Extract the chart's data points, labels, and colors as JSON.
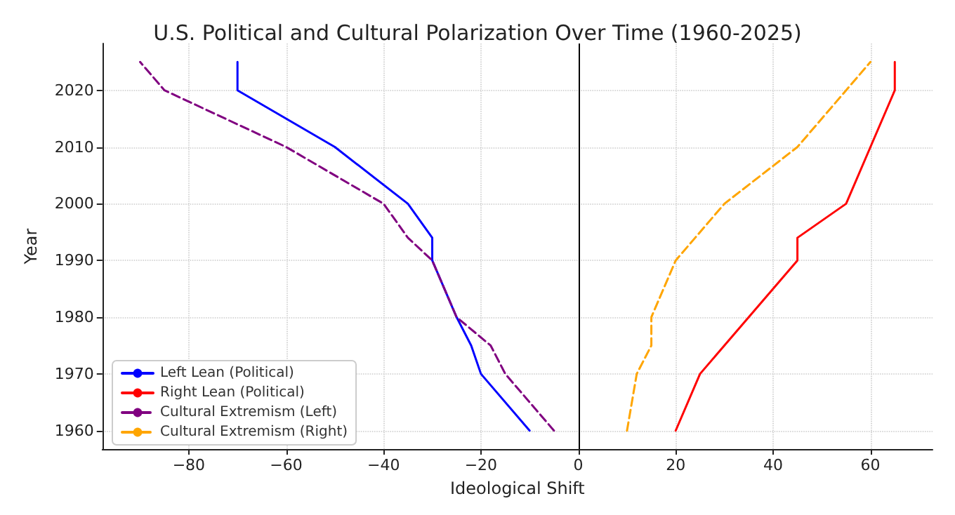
{
  "chart_data": {
    "type": "line",
    "title": "U.S. Political and Cultural Polarization Over Time (1960-2025)",
    "xlabel": "Ideological Shift",
    "ylabel": "Year",
    "xlim": [
      -97.75,
      72.75
    ],
    "xticks": [
      {
        "value": -80,
        "label": "−80"
      },
      {
        "value": -60,
        "label": "−60"
      },
      {
        "value": -40,
        "label": "−40"
      },
      {
        "value": -20,
        "label": "−20"
      },
      0,
      20,
      40,
      60
    ],
    "ylim": [
      1956.75,
      2028.25
    ],
    "yticks": [
      1960,
      1970,
      1980,
      1990,
      2000,
      2010,
      2020
    ],
    "grid": true,
    "legend": "bottom left",
    "marker": "none",
    "ref_lines": [
      {
        "axis": "x",
        "value": 0,
        "color": "#000000",
        "line_style": "solid"
      }
    ],
    "series": [
      {
        "name": "Left Lean (Political)",
        "color": "#0000ff",
        "line_style": "solid",
        "x": [
          -10,
          -20,
          -22,
          -25,
          -30,
          -30,
          -35,
          -50,
          -70,
          -70
        ],
        "values": [
          1960,
          1970,
          1975,
          1980,
          1990,
          1994,
          2000,
          2010,
          2020,
          2025
        ]
      },
      {
        "name": "Right Lean (Political)",
        "color": "#ff0000",
        "line_style": "solid",
        "x": [
          20,
          25,
          45,
          45,
          55,
          60,
          65,
          65
        ],
        "values": [
          1960,
          1970,
          1990,
          1994,
          2000,
          2010,
          2020,
          2025
        ]
      },
      {
        "name": "Cultural Extremism (Left)",
        "color": "#800080",
        "line_style": "dashed",
        "x": [
          -5,
          -15,
          -18,
          -25,
          -30,
          -35,
          -40,
          -60,
          -85,
          -90
        ],
        "values": [
          1960,
          1970,
          1975,
          1980,
          1990,
          1994,
          2000,
          2010,
          2020,
          2025
        ]
      },
      {
        "name": "Cultural Extremism (Right)",
        "color": "#ffa500",
        "line_style": "dashed",
        "x": [
          10,
          12,
          15,
          15,
          20,
          24,
          30,
          45,
          55,
          60
        ],
        "values": [
          1960,
          1970,
          1975,
          1980,
          1990,
          1994,
          2000,
          2010,
          2020,
          2025
        ]
      }
    ]
  }
}
